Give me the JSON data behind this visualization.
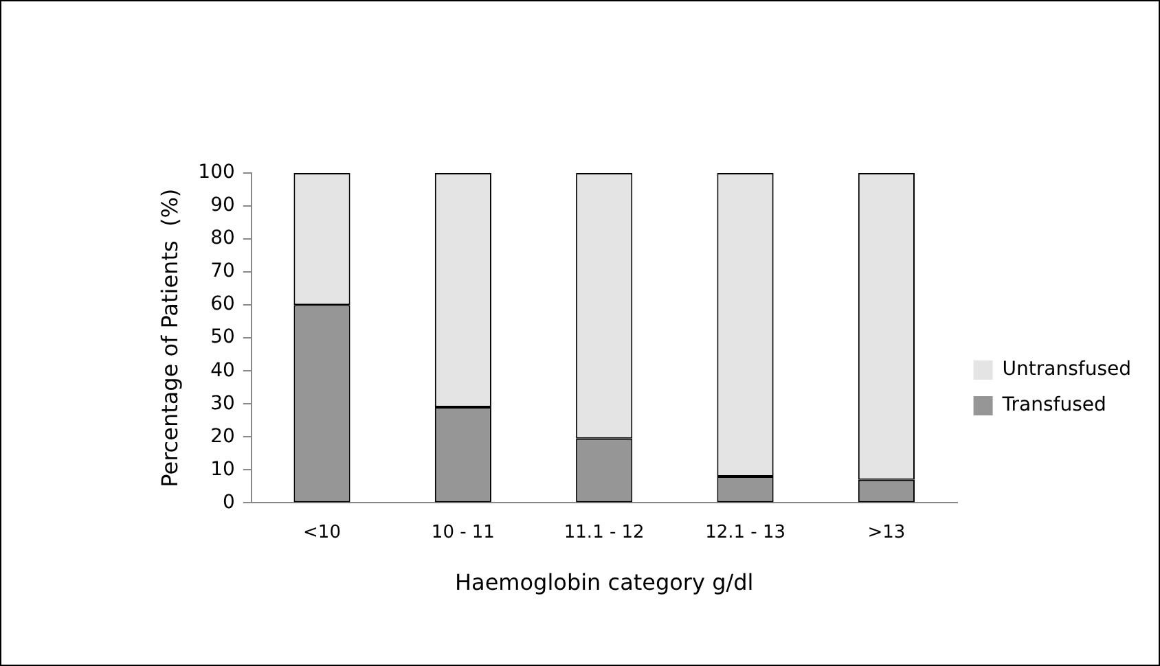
{
  "chart_data": {
    "type": "bar",
    "stacked": true,
    "xlabel": "Haemoglobin category g/dl",
    "ylabel": "Percentage of Patients  (%)",
    "categories": [
      "<10",
      "10 - 11",
      "11.1 - 12",
      "12.1 - 13",
      ">13"
    ],
    "series": [
      {
        "name": "Transfused",
        "color": "#969696",
        "values": [
          60,
          29,
          19.5,
          8,
          7
        ]
      },
      {
        "name": "Untransfused",
        "color": "#e4e4e4",
        "values": [
          40,
          71,
          80.5,
          92,
          93
        ]
      }
    ],
    "ylim": [
      0,
      100
    ],
    "yticks": [
      0,
      10,
      20,
      30,
      40,
      50,
      60,
      70,
      80,
      90,
      100
    ],
    "grid": false,
    "legend": "right"
  }
}
